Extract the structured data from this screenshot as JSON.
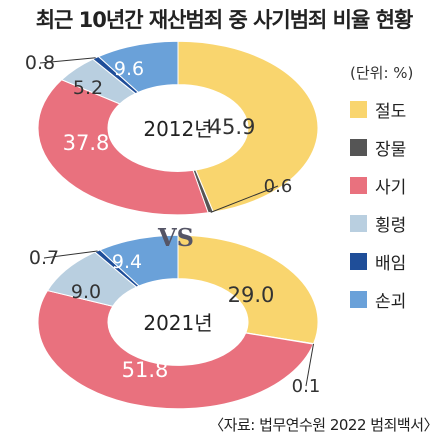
{
  "title": "최근 10년간 재산범죄 중 사기범죄 비율 현황",
  "unit_label": "(단위: %)",
  "vs_label": "VS",
  "source": "〈자료: 법무연수원 2022 범죄백서〉",
  "chart_data": [
    {
      "type": "pie",
      "variant": "donut",
      "center_label": "2012년",
      "categories": [
        "절도",
        "장물",
        "사기",
        "횡령",
        "배임",
        "손괴"
      ],
      "values": [
        45.9,
        0.6,
        37.8,
        5.2,
        0.8,
        9.6
      ],
      "labels": [
        "45.9",
        "0.6",
        "37.8",
        "5.2",
        "0.8",
        "9.6"
      ]
    },
    {
      "type": "pie",
      "variant": "donut",
      "center_label": "2021년",
      "categories": [
        "절도",
        "장물",
        "사기",
        "횡령",
        "배임",
        "손괴"
      ],
      "values": [
        29.0,
        0.1,
        51.8,
        9.0,
        0.7,
        9.4
      ],
      "labels": [
        "29.0",
        "0.1",
        "51.8",
        "9.0",
        "0.7",
        "9.4"
      ]
    }
  ],
  "legend": {
    "placement": "right",
    "items": [
      {
        "label": "절도",
        "color": "#f9d56e"
      },
      {
        "label": "장물",
        "color": "#555555"
      },
      {
        "label": "사기",
        "color": "#e9717e"
      },
      {
        "label": "횡령",
        "color": "#b9cfe0"
      },
      {
        "label": "배임",
        "color": "#1f4e99"
      },
      {
        "label": "손괴",
        "color": "#6aa1d9"
      }
    ]
  }
}
